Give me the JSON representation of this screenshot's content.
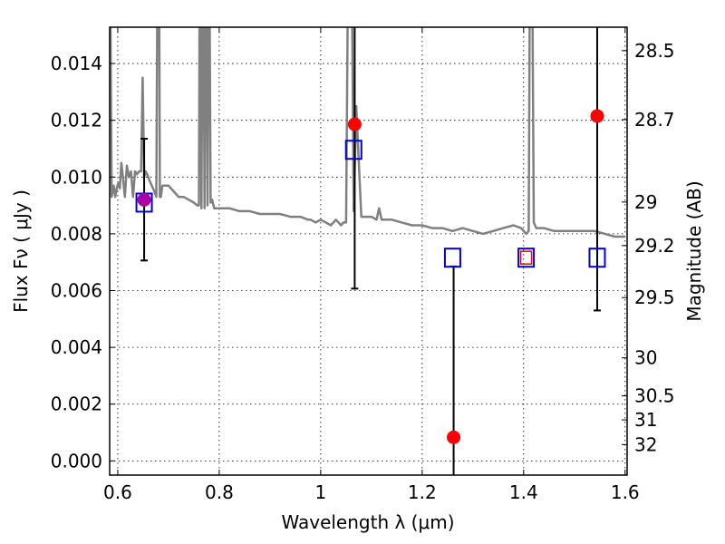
{
  "chart_data": {
    "type": "scatter",
    "title": "",
    "xlabel": "Wavelength  λ (μm)",
    "ylabel": "Flux  Fν  ( μJy )",
    "ylabel_right": "Magnitude (AB)",
    "xlim": [
      0.584,
      1.604
    ],
    "ylim": [
      -0.0005,
      0.01528
    ],
    "grid": true,
    "x_ticks": [
      0.6,
      0.8,
      1.0,
      1.2,
      1.4,
      1.6
    ],
    "x_tick_labels": [
      "0.6",
      "0.8",
      "1",
      "1.2",
      "1.4",
      "1.6"
    ],
    "y_ticks": [
      0.0,
      0.002,
      0.004,
      0.006,
      0.008,
      0.01,
      0.012,
      0.014
    ],
    "y_tick_labels": [
      "0.000",
      "0.002",
      "0.004",
      "0.006",
      "0.008",
      "0.010",
      "0.012",
      "0.014"
    ],
    "right_axis": {
      "ticks_mag": [
        28.5,
        28.7,
        29,
        29.2,
        29.5,
        30,
        30.5,
        31,
        32
      ],
      "tick_labels": [
        "28.5",
        "28.7",
        "29",
        "29.2",
        "29.5",
        "30",
        "30.5",
        "31",
        "32"
      ],
      "zeropoint_ab": 23.9
    },
    "colors": {
      "model": "#808080",
      "observed": "#ff0000",
      "observed_overlap": "#aa00aa",
      "model_phot": "#0000dd",
      "errorbar": "#000000"
    },
    "series": [
      {
        "name": "Model spectrum",
        "type": "line",
        "x": [
          0.585,
          0.588,
          0.592,
          0.595,
          0.598,
          0.601,
          0.604,
          0.607,
          0.61,
          0.614,
          0.618,
          0.622,
          0.626,
          0.63,
          0.634,
          0.638,
          0.642,
          0.646,
          0.649,
          0.652,
          0.655,
          0.658,
          0.662,
          0.667,
          0.672,
          0.676,
          0.679,
          0.681,
          0.683,
          0.685,
          0.688,
          0.694,
          0.7,
          0.71,
          0.72,
          0.73,
          0.74,
          0.75,
          0.757,
          0.76,
          0.762,
          0.765,
          0.768,
          0.771,
          0.774,
          0.777,
          0.78,
          0.783,
          0.786,
          0.79,
          0.8,
          0.82,
          0.84,
          0.86,
          0.88,
          0.9,
          0.92,
          0.94,
          0.96,
          0.975,
          0.98,
          0.99,
          1.0,
          1.01,
          1.02,
          1.03,
          1.04,
          1.045,
          1.05,
          1.055,
          1.06,
          1.065,
          1.07,
          1.08,
          1.1,
          1.11,
          1.115,
          1.12,
          1.14,
          1.16,
          1.18,
          1.2,
          1.22,
          1.24,
          1.26,
          1.28,
          1.3,
          1.32,
          1.34,
          1.36,
          1.38,
          1.395,
          1.405,
          1.41,
          1.413,
          1.416,
          1.42,
          1.425,
          1.44,
          1.46,
          1.48,
          1.5,
          1.52,
          1.54,
          1.56,
          1.58,
          1.6
        ],
        "y": [
          0.017,
          0.0093,
          0.0097,
          0.0093,
          0.0096,
          0.0098,
          0.0096,
          0.0105,
          0.01,
          0.0093,
          0.0104,
          0.01,
          0.0102,
          0.0093,
          0.0102,
          0.0101,
          0.0102,
          0.0102,
          0.0135,
          0.01,
          0.0102,
          0.0101,
          0.0099,
          0.0097,
          0.0095,
          0.0093,
          0.02,
          0.02,
          0.0093,
          0.0093,
          0.0097,
          0.0097,
          0.0097,
          0.0095,
          0.0093,
          0.0093,
          0.0092,
          0.0091,
          0.009,
          0.009,
          0.02,
          0.0089,
          0.02,
          0.0089,
          0.02,
          0.009,
          0.02,
          0.0091,
          0.0092,
          0.0089,
          0.0089,
          0.0089,
          0.0088,
          0.0088,
          0.0087,
          0.0087,
          0.0087,
          0.0086,
          0.0086,
          0.0085,
          0.0085,
          0.0084,
          0.0085,
          0.0084,
          0.0083,
          0.0085,
          0.0083,
          0.0084,
          0.0084,
          0.02,
          0.02,
          0.0088,
          0.0125,
          0.0086,
          0.0086,
          0.0085,
          0.0089,
          0.0085,
          0.0085,
          0.0084,
          0.0083,
          0.0083,
          0.0082,
          0.0082,
          0.0081,
          0.0082,
          0.0081,
          0.008,
          0.0081,
          0.0082,
          0.0083,
          0.0082,
          0.008,
          0.0081,
          0.02,
          0.02,
          0.0084,
          0.0082,
          0.0082,
          0.0081,
          0.0081,
          0.0081,
          0.0081,
          0.0081,
          0.008,
          0.0079,
          0.0079
        ]
      },
      {
        "name": "Observed flux",
        "type": "scatter",
        "marker": "circle",
        "points": [
          {
            "x": 0.652,
            "y": 0.0092,
            "color": "#aa00aa"
          },
          {
            "x": 1.067,
            "y": 0.01186,
            "color": "#ff0000"
          },
          {
            "x": 1.262,
            "y": 0.00083,
            "color": "#ff0000"
          },
          {
            "x": 1.545,
            "y": 0.01215,
            "color": "#ff0000"
          }
        ]
      },
      {
        "name": "Error bars",
        "type": "errorbar",
        "bars": [
          {
            "x": 0.652,
            "low": 0.00706,
            "high": 0.01135,
            "cap_low": true,
            "cap_high": true
          },
          {
            "x": 1.067,
            "low": 0.00607,
            "high": 0.02,
            "cap_low": true,
            "cap_high": false
          },
          {
            "x": 1.262,
            "low": -0.001,
            "high": 0.00685,
            "cap_low": false,
            "cap_high": true
          },
          {
            "x": 1.545,
            "low": 0.0053,
            "high": 0.02,
            "cap_low": true,
            "cap_high": false
          }
        ]
      },
      {
        "name": "Model photometry",
        "type": "scatter",
        "marker": "open-square",
        "points": [
          {
            "x": 0.652,
            "y": 0.0091
          },
          {
            "x": 1.065,
            "y": 0.01096
          },
          {
            "x": 1.26,
            "y": 0.00716
          },
          {
            "x": 1.405,
            "y": 0.00716
          },
          {
            "x": 1.545,
            "y": 0.00716
          }
        ]
      },
      {
        "name": "Upper limit marker",
        "type": "scatter",
        "marker": "small-open-square",
        "points": [
          {
            "x": 1.405,
            "y": 0.00716,
            "color": "#ff0000"
          }
        ]
      }
    ]
  }
}
